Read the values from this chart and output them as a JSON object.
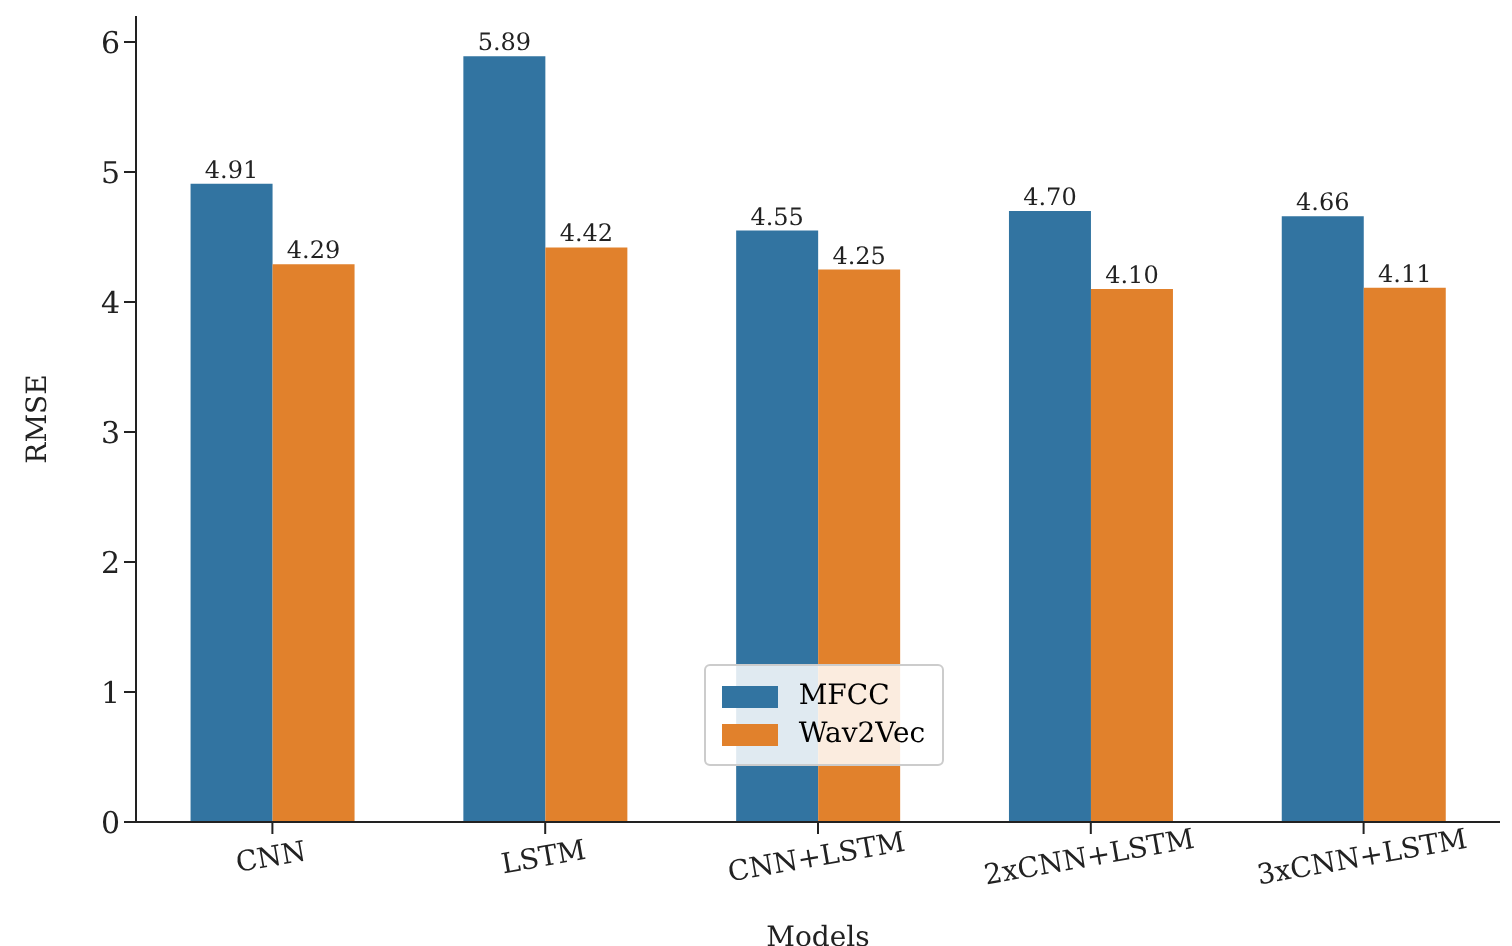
{
  "chart_data": {
    "type": "bar",
    "xlabel": "Models",
    "ylabel": "RMSE",
    "categories": [
      "CNN",
      "LSTM",
      "CNN+LSTM",
      "2xCNN+LSTM",
      "3xCNN+LSTM"
    ],
    "series": [
      {
        "name": "MFCC",
        "color": "#3274a1",
        "values": [
          4.91,
          5.89,
          4.55,
          4.7,
          4.66
        ],
        "value_labels": [
          "4.91",
          "5.89",
          "4.55",
          "4.70",
          "4.66"
        ]
      },
      {
        "name": "Wav2Vec",
        "color": "#e1812c",
        "values": [
          4.29,
          4.42,
          4.25,
          4.1,
          4.11
        ],
        "value_labels": [
          "4.29",
          "4.42",
          "4.25",
          "4.10",
          "4.11"
        ]
      }
    ],
    "ylim": [
      0,
      6.2
    ],
    "yticks": [
      0,
      1,
      2,
      3,
      4,
      5,
      6
    ],
    "legend": "bottom",
    "grid": false
  }
}
